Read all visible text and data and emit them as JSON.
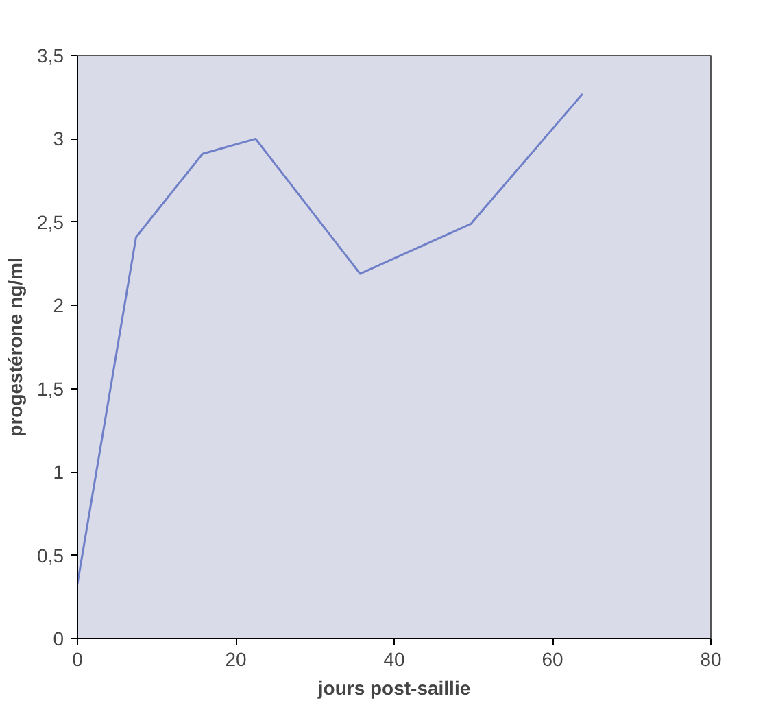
{
  "chart_data": {
    "type": "line",
    "xlabel": "jours post-saillie",
    "ylabel": "progestérone ng/ml",
    "x": [
      0,
      7.4,
      15.8,
      22.5,
      35.7,
      49.7,
      63.8
    ],
    "series": [
      {
        "color": "#6f7fc8",
        "values": [
          0.33,
          2.41,
          2.91,
          3.0,
          2.19,
          2.49,
          3.27
        ]
      }
    ],
    "xlim": [
      0,
      80
    ],
    "xticks": [
      0,
      20,
      40,
      60,
      80
    ],
    "ylim": [
      0,
      3.5
    ],
    "yticks": [
      {
        "value": 0,
        "label": "0"
      },
      {
        "value": 0.5,
        "label": "0,5"
      },
      {
        "value": 1,
        "label": "1"
      },
      {
        "value": 1.5,
        "label": "1,5"
      },
      {
        "value": 2,
        "label": "2"
      },
      {
        "value": 2.5,
        "label": "2,5"
      },
      {
        "value": 3,
        "label": "3"
      },
      {
        "value": 3.5,
        "label": "3,5"
      }
    ],
    "marker": "none",
    "line_style": "solid"
  }
}
